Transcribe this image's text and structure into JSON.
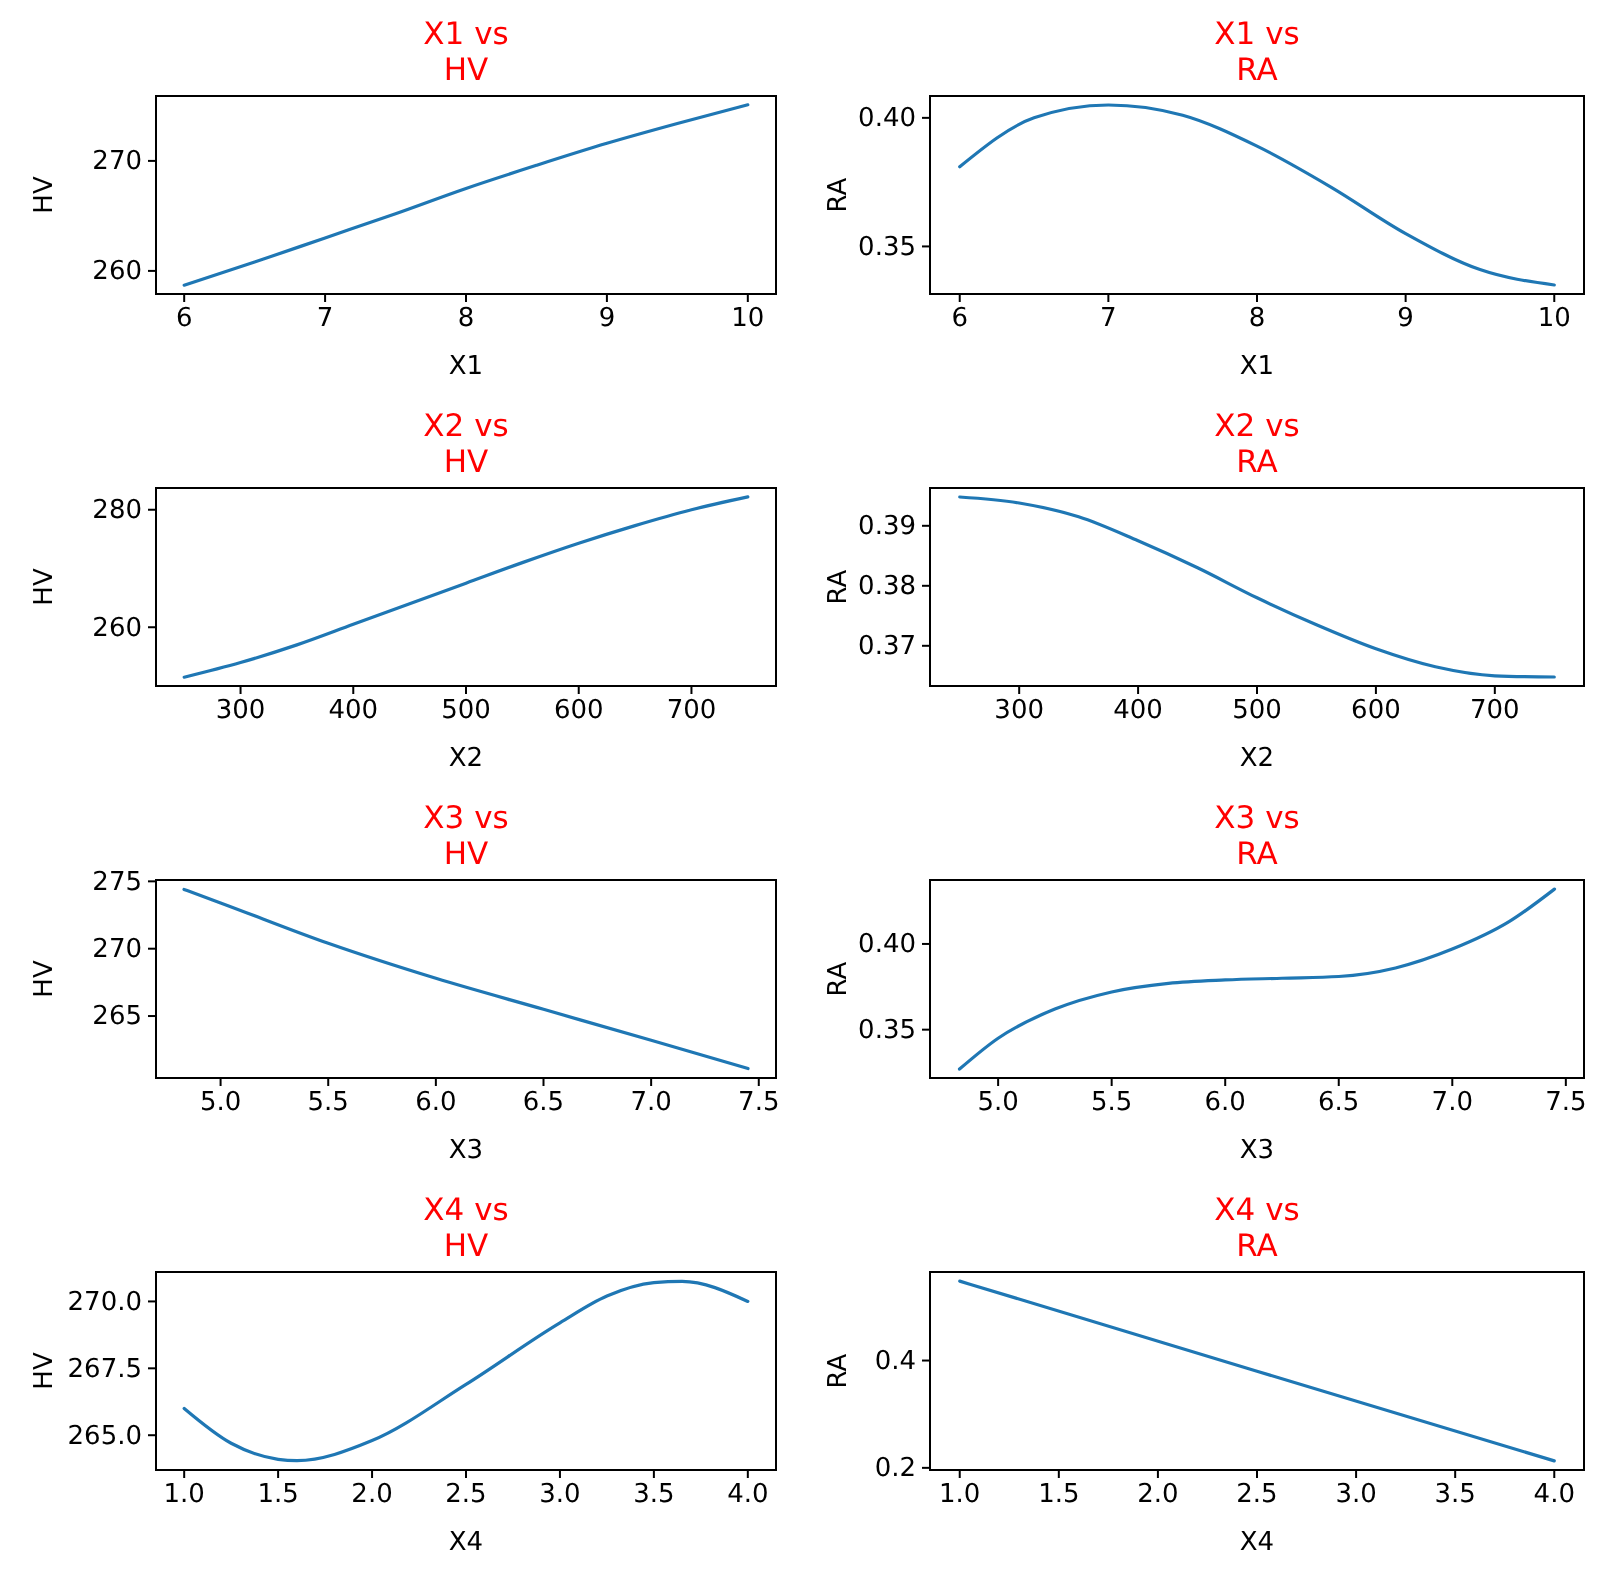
{
  "chart_data": [
    {
      "type": "line",
      "title": "X1 vs\nHV",
      "xlabel": "X1",
      "ylabel": "HV",
      "xlim": [
        5.8,
        10.2
      ],
      "ylim": [
        257.9,
        275.9
      ],
      "xticks": [
        6,
        7,
        8,
        9,
        10
      ],
      "yticks": [
        260,
        270
      ],
      "x": [
        6,
        6.5,
        7,
        7.5,
        8,
        8.5,
        9,
        9.5,
        10
      ],
      "series": [
        {
          "color": "#1f77b4",
          "values": [
            258.7,
            260.8,
            263.0,
            265.2,
            267.5,
            269.6,
            271.6,
            273.4,
            275.1
          ]
        }
      ]
    },
    {
      "type": "line",
      "title": "X1 vs\nRA",
      "xlabel": "X1",
      "ylabel": "RA",
      "xlim": [
        5.8,
        10.2
      ],
      "ylim": [
        0.3315,
        0.4085
      ],
      "xticks": [
        6,
        7,
        8,
        9,
        10
      ],
      "yticks": [
        0.35,
        {
          "value": 0.4,
          "label": "0.40"
        }
      ],
      "x": [
        6,
        6.5,
        7,
        7.5,
        8,
        8.5,
        9,
        9.5,
        10
      ],
      "series": [
        {
          "color": "#1f77b4",
          "values": [
            0.381,
            0.4,
            0.405,
            0.401,
            0.389,
            0.373,
            0.355,
            0.341,
            0.335
          ]
        }
      ]
    },
    {
      "type": "line",
      "title": "X2 vs\nHV",
      "xlabel": "X2",
      "ylabel": "HV",
      "xlim": [
        225,
        775
      ],
      "ylim": [
        250,
        283.7
      ],
      "xticks": [
        300,
        400,
        500,
        600,
        700
      ],
      "yticks": [
        260,
        280
      ],
      "x": [
        250,
        300,
        350,
        400,
        450,
        500,
        550,
        600,
        650,
        700,
        750
      ],
      "series": [
        {
          "color": "#1f77b4",
          "values": [
            251.5,
            254,
            257,
            260.5,
            264,
            267.5,
            271,
            274.3,
            277.3,
            280,
            282.2
          ]
        }
      ]
    },
    {
      "type": "line",
      "title": "X2 vs\nRA",
      "xlabel": "X2",
      "ylabel": "RA",
      "xlim": [
        225,
        775
      ],
      "ylim": [
        0.3633,
        0.3963
      ],
      "xticks": [
        300,
        400,
        500,
        600,
        700
      ],
      "yticks": [
        0.37,
        0.38,
        0.39
      ],
      "x": [
        250,
        300,
        350,
        400,
        450,
        500,
        550,
        600,
        650,
        700,
        750
      ],
      "series": [
        {
          "color": "#1f77b4",
          "values": [
            0.3948,
            0.3938,
            0.3915,
            0.3875,
            0.383,
            0.378,
            0.3735,
            0.3695,
            0.3665,
            0.365,
            0.3648
          ]
        }
      ]
    },
    {
      "type": "line",
      "title": "X3 vs\nHV",
      "xlabel": "X3",
      "ylabel": "HV",
      "xlim": [
        4.7,
        7.58
      ],
      "ylim": [
        260.4,
        275.1
      ],
      "xticks": [
        {
          "value": 5,
          "label": "5.0"
        },
        5.5,
        {
          "value": 6,
          "label": "6.0"
        },
        6.5,
        {
          "value": 7,
          "label": "7.0"
        },
        7.5
      ],
      "yticks": [
        265,
        270,
        275
      ],
      "x": [
        4.83,
        5.0,
        5.5,
        6.0,
        6.5,
        7.0,
        7.45
      ],
      "series": [
        {
          "color": "#1f77b4",
          "values": [
            274.4,
            273.4,
            270.4,
            267.8,
            265.5,
            263.2,
            261.1
          ]
        }
      ]
    },
    {
      "type": "line",
      "title": "X3 vs\nRA",
      "xlabel": "X3",
      "ylabel": "RA",
      "xlim": [
        4.7,
        7.58
      ],
      "ylim": [
        0.3218,
        0.4373
      ],
      "xticks": [
        {
          "value": 5,
          "label": "5.0"
        },
        5.5,
        {
          "value": 6,
          "label": "6.0"
        },
        6.5,
        {
          "value": 7,
          "label": "7.0"
        },
        7.5
      ],
      "yticks": [
        0.35,
        {
          "value": 0.4,
          "label": "0.40"
        }
      ],
      "x": [
        4.83,
        5.0,
        5.25,
        5.5,
        5.75,
        6.0,
        6.25,
        6.5,
        6.75,
        7.0,
        7.25,
        7.45
      ],
      "series": [
        {
          "color": "#1f77b4",
          "values": [
            0.327,
            0.345,
            0.362,
            0.372,
            0.377,
            0.379,
            0.38,
            0.381,
            0.386,
            0.397,
            0.413,
            0.432
          ]
        }
      ]
    },
    {
      "type": "line",
      "title": "X4 vs\nHV",
      "xlabel": "X4",
      "ylabel": "HV",
      "xlim": [
        0.85,
        4.15
      ],
      "ylim": [
        263.7,
        271.1
      ],
      "xticks": [
        {
          "value": 1,
          "label": "1.0"
        },
        1.5,
        {
          "value": 2,
          "label": "2.0"
        },
        2.5,
        {
          "value": 3,
          "label": "3.0"
        },
        3.5,
        {
          "value": 4,
          "label": "4.0"
        }
      ],
      "yticks": [
        {
          "value": 265,
          "label": "265.0"
        },
        267.5,
        {
          "value": 270,
          "label": "270.0"
        }
      ],
      "x": [
        1.0,
        1.25,
        1.5,
        1.6,
        2.0,
        2.5,
        3.0,
        3.25,
        3.5,
        3.65,
        4.0
      ],
      "series": [
        {
          "color": "#1f77b4",
          "values": [
            266.0,
            264.7,
            264.1,
            264.05,
            264.8,
            266.9,
            269.2,
            270.2,
            270.7,
            270.75,
            270.0
          ]
        }
      ]
    },
    {
      "type": "line",
      "title": "X4 vs\nRA",
      "xlabel": "X4",
      "ylabel": "RA",
      "xlim": [
        0.85,
        4.15
      ],
      "ylim": [
        0.196,
        0.565
      ],
      "xticks": [
        {
          "value": 1,
          "label": "1.0"
        },
        1.5,
        {
          "value": 2,
          "label": "2.0"
        },
        2.5,
        {
          "value": 3,
          "label": "3.0"
        },
        3.5,
        {
          "value": 4,
          "label": "4.0"
        }
      ],
      "yticks": [
        0.2,
        0.4
      ],
      "x": [
        1.0,
        2.5,
        4.0
      ],
      "series": [
        {
          "color": "#1f77b4",
          "values": [
            0.548,
            0.38,
            0.213
          ]
        }
      ]
    }
  ]
}
